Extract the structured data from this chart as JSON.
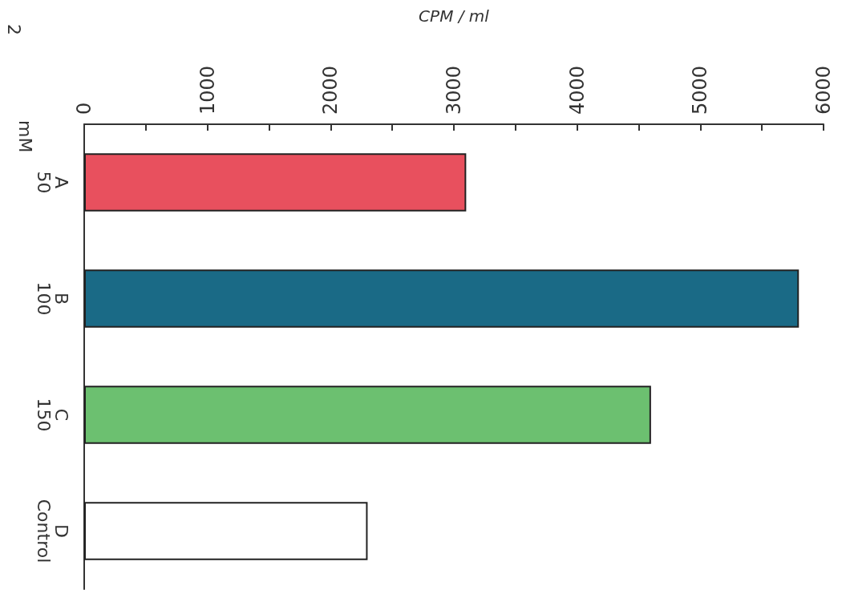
{
  "chart_data": {
    "type": "bar",
    "orientation": "horizontal",
    "xlabel": "CPM / ml",
    "categories": [
      "A\n50",
      "B\n100",
      "C\n150",
      "D\nControl"
    ],
    "values": [
      3100,
      5800,
      4600,
      2300
    ],
    "colors": [
      "#e8505e",
      "#1a6a86",
      "#6cc070",
      "#ffffff"
    ],
    "xlim": [
      0,
      6000
    ],
    "xticks": [
      0,
      {
        "value": 500,
        "label": null
      },
      1000,
      {
        "value": 1500,
        "label": null
      },
      2000,
      {
        "value": 2500,
        "label": null
      },
      3000,
      {
        "value": 3500,
        "label": null
      },
      4000,
      {
        "value": 4500,
        "label": null
      },
      5000,
      {
        "value": 5500,
        "label": null
      },
      6000
    ],
    "annotations": [
      "mM",
      "2"
    ],
    "grid": false
  }
}
